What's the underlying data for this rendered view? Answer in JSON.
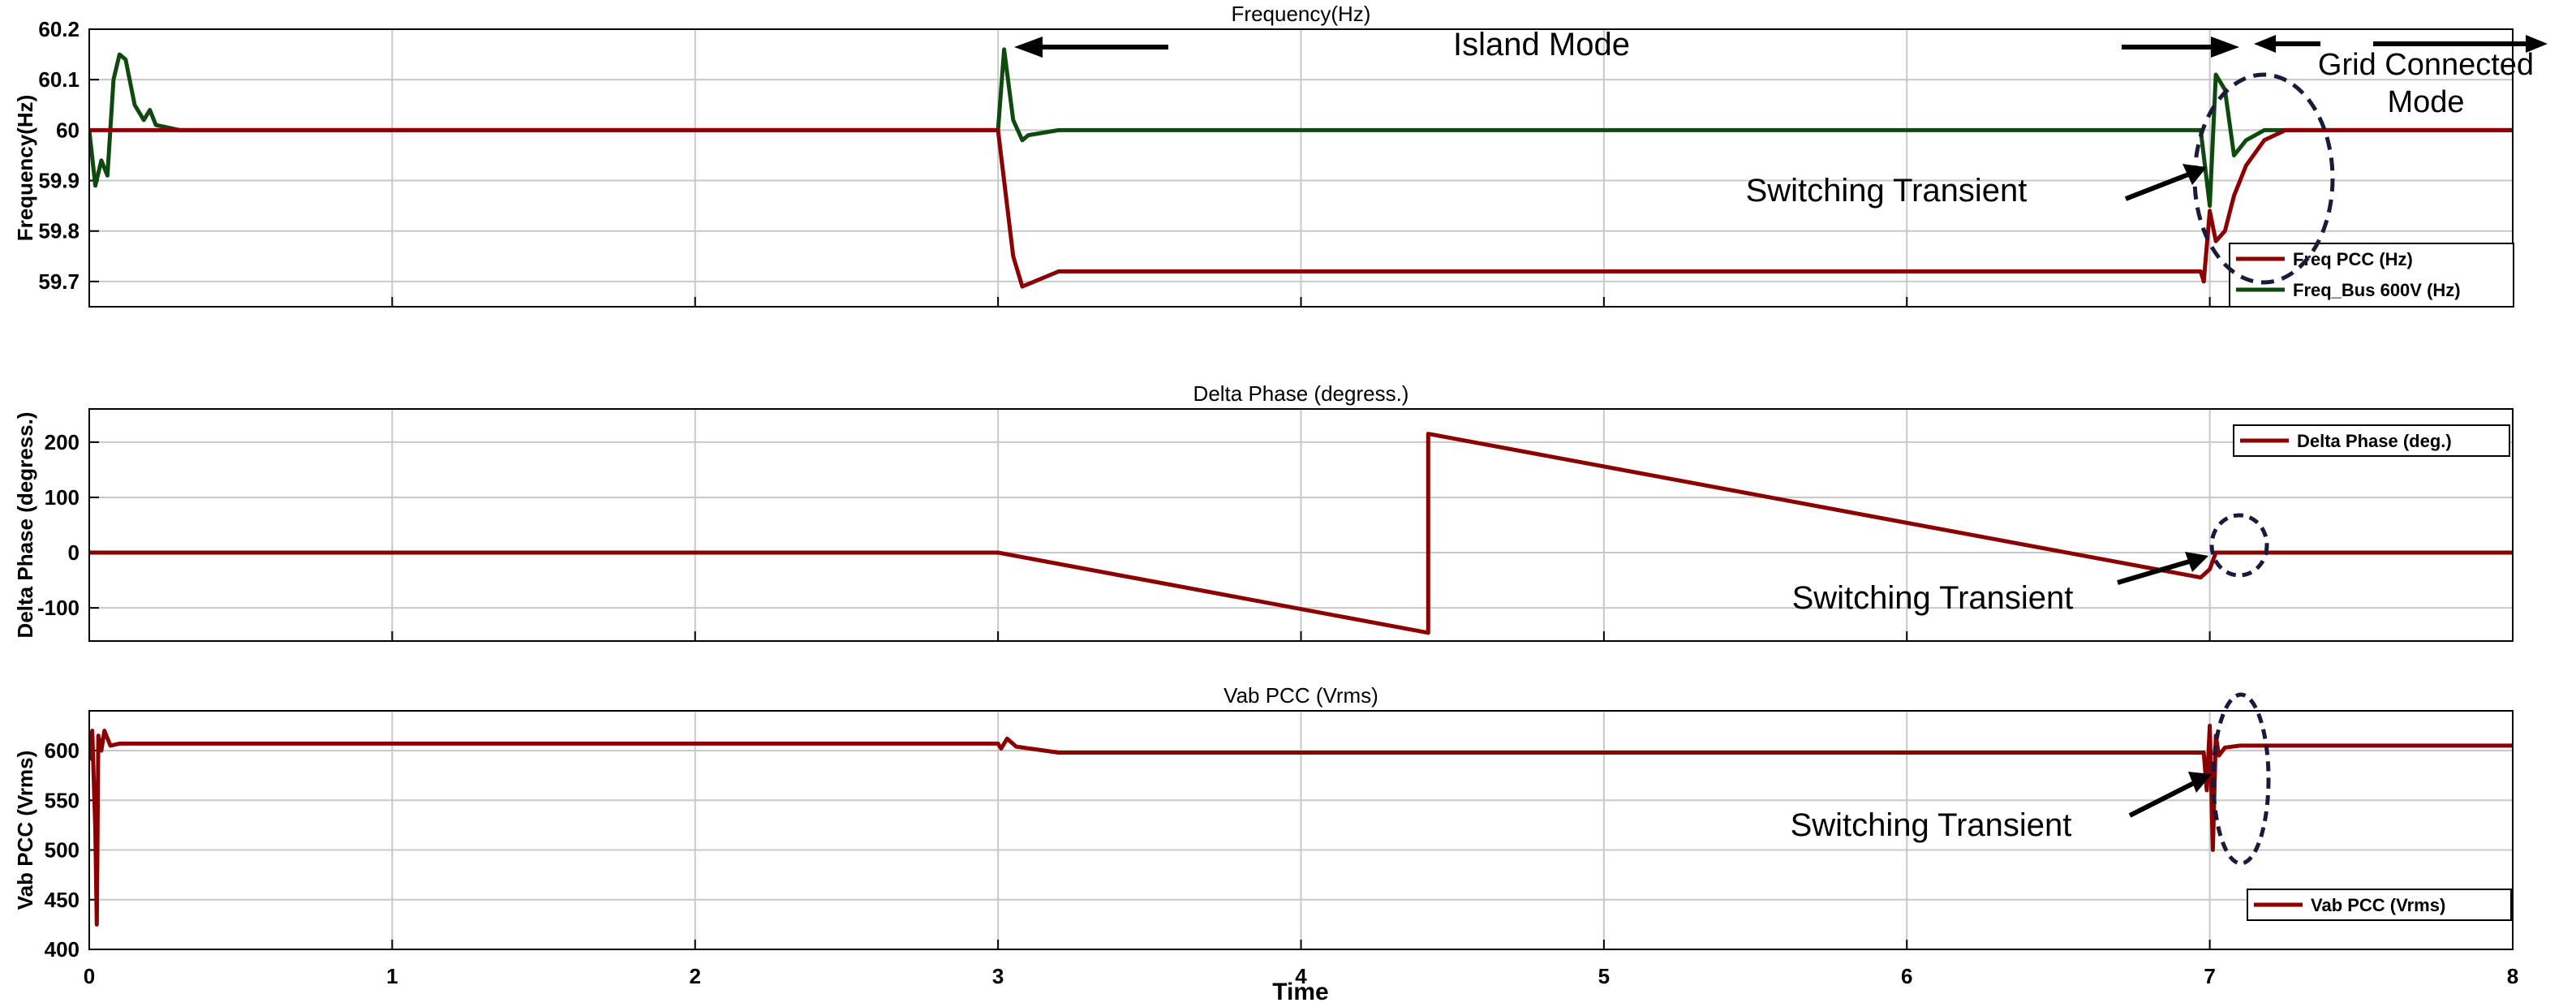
{
  "figure": {
    "xlabel": "Time",
    "xlim": [
      0,
      8
    ],
    "xticks": [
      "0",
      "1",
      "2",
      "3",
      "4",
      "5",
      "6",
      "7",
      "8"
    ]
  },
  "annotations": {
    "island_mode": "Island Mode",
    "grid_connected_line1": "Grid Connected",
    "grid_connected_line2": "Mode",
    "switching_transient": "Switching Transient"
  },
  "colors": {
    "series_red": "#8b0000",
    "series_green": "#0e4a0e",
    "grid": "#c8c8c8",
    "axis": "#000000"
  },
  "chart_data": [
    {
      "type": "line",
      "title": "Frequency(Hz)",
      "ylabel": "Frequency(Hz)",
      "ylim": [
        59.65,
        60.2
      ],
      "yticks": [
        "59.7",
        "59.8",
        "59.9",
        "60",
        "60.1",
        "60.2"
      ],
      "grid": true,
      "legend_position": "bottom-right",
      "series": [
        {
          "name": "Freq PCC (Hz)",
          "color": "#8b0000",
          "x": [
            0,
            3.0,
            3.05,
            3.08,
            3.12,
            3.2,
            6.97,
            6.98,
            7.0,
            7.02,
            7.05,
            7.08,
            7.12,
            7.18,
            7.25,
            8.0
          ],
          "y": [
            60.0,
            60.0,
            59.75,
            59.69,
            59.7,
            59.72,
            59.72,
            59.7,
            59.84,
            59.78,
            59.8,
            59.87,
            59.93,
            59.98,
            60.0,
            60.0
          ]
        },
        {
          "name": "Freq_Bus 600V (Hz)",
          "color": "#0e4a0e",
          "x": [
            0,
            0.02,
            0.04,
            0.06,
            0.08,
            0.1,
            0.12,
            0.15,
            0.18,
            0.2,
            0.22,
            0.3,
            3.0,
            3.02,
            3.05,
            3.08,
            3.1,
            3.2,
            6.97,
            7.0,
            7.02,
            7.05,
            7.08,
            7.12,
            7.18,
            8.0
          ],
          "y": [
            60.0,
            59.89,
            59.94,
            59.91,
            60.1,
            60.15,
            60.14,
            60.05,
            60.02,
            60.04,
            60.01,
            60.0,
            60.0,
            60.16,
            60.02,
            59.98,
            59.99,
            60.0,
            60.0,
            59.85,
            60.11,
            60.08,
            59.95,
            59.98,
            60.0,
            60.0
          ]
        }
      ]
    },
    {
      "type": "line",
      "title": "Delta Phase (degress.)",
      "ylabel": "Delta Phase (degress.)",
      "ylim": [
        -160,
        260
      ],
      "yticks": [
        "-100",
        "0",
        "100",
        "200"
      ],
      "grid": true,
      "legend_position": "top-right",
      "series": [
        {
          "name": "Delta Phase (deg.)",
          "color": "#8b0000",
          "x": [
            0,
            3.0,
            4.42,
            4.42,
            6.97,
            7.0,
            7.02,
            8.0
          ],
          "y": [
            0,
            0,
            -145,
            215,
            -45,
            -30,
            0,
            0
          ]
        }
      ]
    },
    {
      "type": "line",
      "title": "Vab PCC (Vrms)",
      "ylabel": "Vab PCC (Vrms)",
      "ylim": [
        400,
        640
      ],
      "yticks": [
        "400",
        "450",
        "500",
        "550",
        "600"
      ],
      "grid": true,
      "legend_position": "bottom-right",
      "series": [
        {
          "name": "Vab PCC (Vrms)",
          "color": "#8b0000",
          "x": [
            0,
            0.01,
            0.02,
            0.025,
            0.03,
            0.04,
            0.05,
            0.07,
            0.1,
            0.2,
            3.0,
            3.01,
            3.03,
            3.06,
            3.2,
            6.98,
            6.99,
            7.0,
            7.01,
            7.02,
            7.03,
            7.05,
            7.1,
            8.0
          ],
          "y": [
            590,
            620,
            520,
            425,
            615,
            600,
            620,
            605,
            607,
            607,
            607,
            602,
            612,
            604,
            598,
            598,
            560,
            625,
            500,
            615,
            595,
            603,
            605,
            605
          ]
        }
      ]
    }
  ]
}
